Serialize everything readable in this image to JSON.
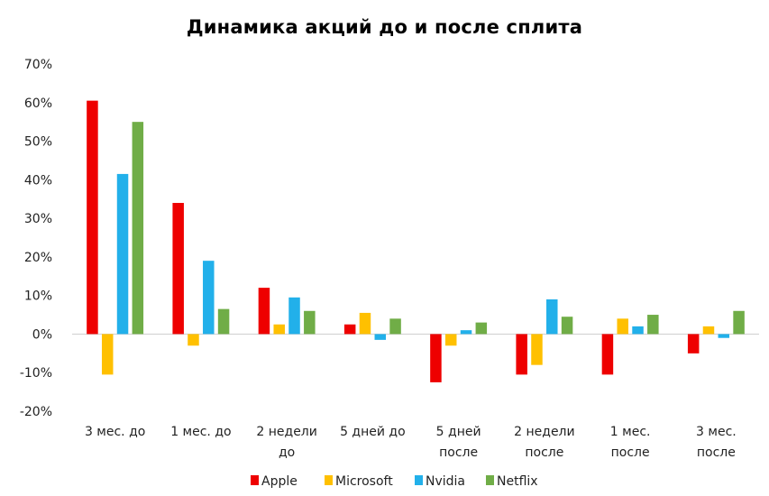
{
  "chart_data": {
    "type": "bar",
    "title": "Динамика акций до и после сплита",
    "xlabel": "",
    "ylabel": "",
    "ylim": [
      -20,
      70
    ],
    "yticks": [
      70,
      60,
      50,
      40,
      30,
      20,
      10,
      0,
      -10,
      -20
    ],
    "ytick_labels": [
      "70%",
      "60%",
      "50%",
      "40%",
      "30%",
      "20%",
      "10%",
      "0%",
      "-10%",
      "-20%"
    ],
    "grid": false,
    "legend_position": "bottom",
    "categories": [
      [
        "3 мес. до"
      ],
      [
        "1 мес. до"
      ],
      [
        "2 недели",
        "до"
      ],
      [
        "5 дней до"
      ],
      [
        "5 дней",
        "после"
      ],
      [
        "2 недели",
        "после"
      ],
      [
        "1 мес.",
        "после"
      ],
      [
        "3 мес.",
        "после"
      ]
    ],
    "series": [
      {
        "name": "Apple",
        "color": "#ee0000",
        "values": [
          60.5,
          34,
          12,
          2.5,
          -12.5,
          -10.5,
          -10.5,
          -5
        ]
      },
      {
        "name": "Microsoft",
        "color": "#ffc000",
        "values": [
          -10.5,
          -3,
          2.5,
          5.5,
          -3,
          -8,
          4,
          2
        ]
      },
      {
        "name": "Nvidia",
        "color": "#22b0ea",
        "values": [
          41.5,
          19,
          9.5,
          -1.5,
          1,
          9,
          2,
          -1
        ]
      },
      {
        "name": "Netflix",
        "color": "#70ad47",
        "values": [
          55,
          6.5,
          6,
          4,
          3,
          4.5,
          5,
          6
        ]
      }
    ]
  }
}
